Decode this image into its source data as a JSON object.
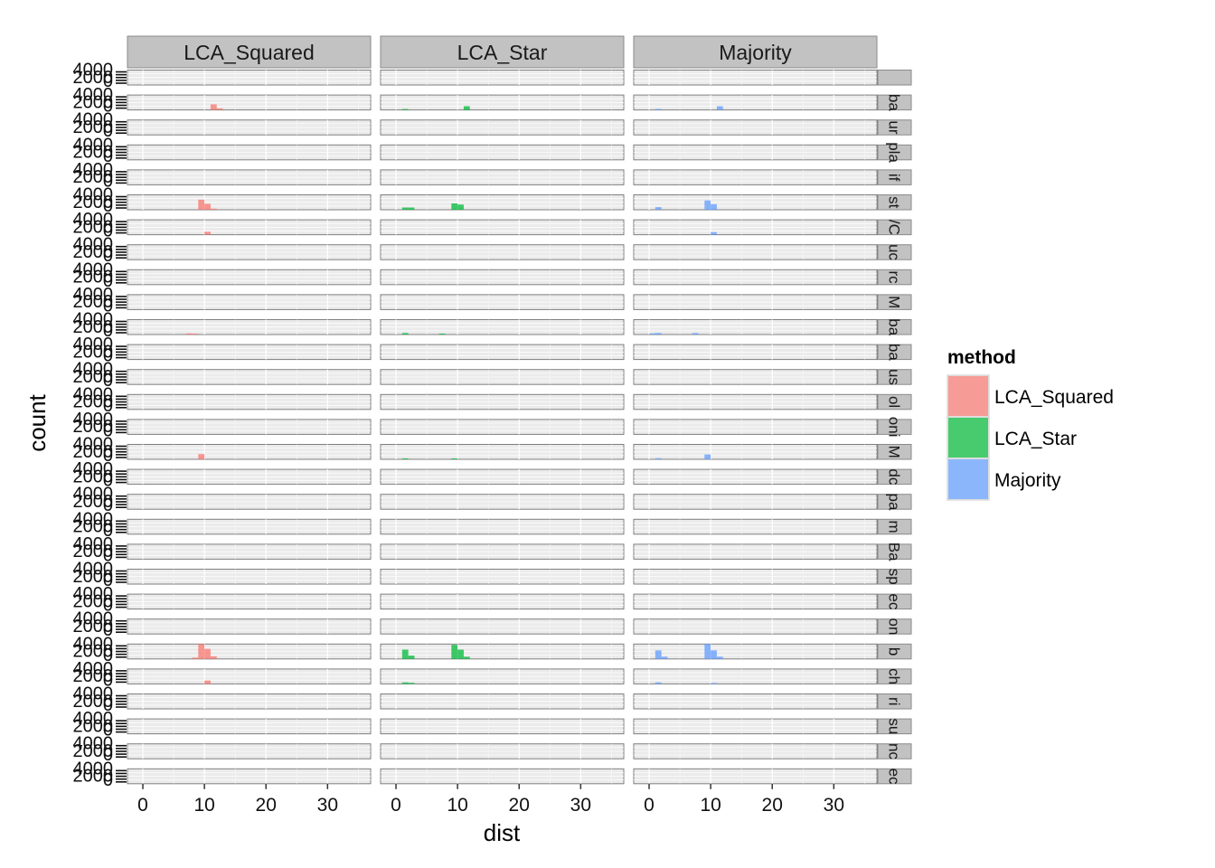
{
  "chart_data": {
    "type": "histogram",
    "xlabel": "dist",
    "ylabel": "count",
    "x_ticks": [
      0,
      10,
      20,
      30
    ],
    "x_range": [
      -2.5,
      37
    ],
    "y_range": [
      0,
      4000
    ],
    "y_tick_labels": [
      "0",
      "2000",
      "4000"
    ],
    "facet_columns": [
      "LCA_Squared",
      "LCA_Star",
      "Majority"
    ],
    "facet_rows": [
      "",
      "ba",
      "ur",
      "pla",
      "if",
      "st",
      "/C",
      "uc",
      "rc",
      "M",
      "ba",
      "ba",
      "us",
      "ol",
      "oni",
      "M",
      "dc",
      "pa",
      "m",
      "Ba",
      "sp",
      "ec",
      "on",
      "b",
      "ch",
      "ri",
      "su",
      "nc",
      "ec"
    ],
    "legend": {
      "title": "method",
      "entries": [
        "LCA_Squared",
        "LCA_Star",
        "Majority"
      ],
      "colors": [
        "#F8766D",
        "#00BA38",
        "#619CFF"
      ]
    },
    "bin_width": 1,
    "series": [
      {
        "name": "LCA_Squared",
        "bars": [
          {
            "row": 1,
            "x": 11.5,
            "count": 1500
          },
          {
            "row": 1,
            "x": 12.5,
            "count": 400
          },
          {
            "row": 5,
            "x": 9.5,
            "count": 2700
          },
          {
            "row": 5,
            "x": 10.5,
            "count": 1600
          },
          {
            "row": 5,
            "x": 11.5,
            "count": 300
          },
          {
            "row": 6,
            "x": 10.5,
            "count": 800
          },
          {
            "row": 10,
            "x": 7.5,
            "count": 300
          },
          {
            "row": 10,
            "x": 8.5,
            "count": 250
          },
          {
            "row": 15,
            "x": 9.5,
            "count": 1400
          },
          {
            "row": 23,
            "x": 8.5,
            "count": 350
          },
          {
            "row": 23,
            "x": 9.5,
            "count": 4000
          },
          {
            "row": 23,
            "x": 10.5,
            "count": 2700
          },
          {
            "row": 23,
            "x": 11.5,
            "count": 700
          },
          {
            "row": 24,
            "x": 10.5,
            "count": 900
          }
        ]
      },
      {
        "name": "LCA_Star",
        "bars": [
          {
            "row": 1,
            "x": 1.5,
            "count": 150
          },
          {
            "row": 1,
            "x": 11.5,
            "count": 1000
          },
          {
            "row": 5,
            "x": 1.5,
            "count": 600
          },
          {
            "row": 5,
            "x": 2.5,
            "count": 600
          },
          {
            "row": 5,
            "x": 9.5,
            "count": 1700
          },
          {
            "row": 5,
            "x": 10.5,
            "count": 1400
          },
          {
            "row": 10,
            "x": 1.5,
            "count": 400
          },
          {
            "row": 10,
            "x": 7.5,
            "count": 250
          },
          {
            "row": 15,
            "x": 1.5,
            "count": 150
          },
          {
            "row": 15,
            "x": 9.5,
            "count": 200
          },
          {
            "row": 23,
            "x": 1.5,
            "count": 2500
          },
          {
            "row": 23,
            "x": 2.5,
            "count": 900
          },
          {
            "row": 23,
            "x": 9.5,
            "count": 3800
          },
          {
            "row": 23,
            "x": 10.5,
            "count": 2500
          },
          {
            "row": 23,
            "x": 11.5,
            "count": 600
          },
          {
            "row": 24,
            "x": 1.5,
            "count": 400
          },
          {
            "row": 24,
            "x": 2.5,
            "count": 300
          }
        ]
      },
      {
        "name": "Majority",
        "bars": [
          {
            "row": 1,
            "x": 1.5,
            "count": 250
          },
          {
            "row": 1,
            "x": 11.5,
            "count": 1000
          },
          {
            "row": 5,
            "x": 1.5,
            "count": 700
          },
          {
            "row": 5,
            "x": 9.5,
            "count": 2500
          },
          {
            "row": 5,
            "x": 10.5,
            "count": 1500
          },
          {
            "row": 6,
            "x": 10.5,
            "count": 700
          },
          {
            "row": 10,
            "x": 0.5,
            "count": 300
          },
          {
            "row": 10,
            "x": 1.5,
            "count": 400
          },
          {
            "row": 10,
            "x": 7.5,
            "count": 400
          },
          {
            "row": 15,
            "x": 1.5,
            "count": 300
          },
          {
            "row": 15,
            "x": 9.5,
            "count": 1300
          },
          {
            "row": 23,
            "x": 1.5,
            "count": 2300
          },
          {
            "row": 23,
            "x": 2.5,
            "count": 600
          },
          {
            "row": 23,
            "x": 9.5,
            "count": 4000
          },
          {
            "row": 23,
            "x": 10.5,
            "count": 2300
          },
          {
            "row": 23,
            "x": 11.5,
            "count": 600
          },
          {
            "row": 24,
            "x": 1.5,
            "count": 400
          },
          {
            "row": 24,
            "x": 10.5,
            "count": 200
          }
        ]
      }
    ]
  }
}
